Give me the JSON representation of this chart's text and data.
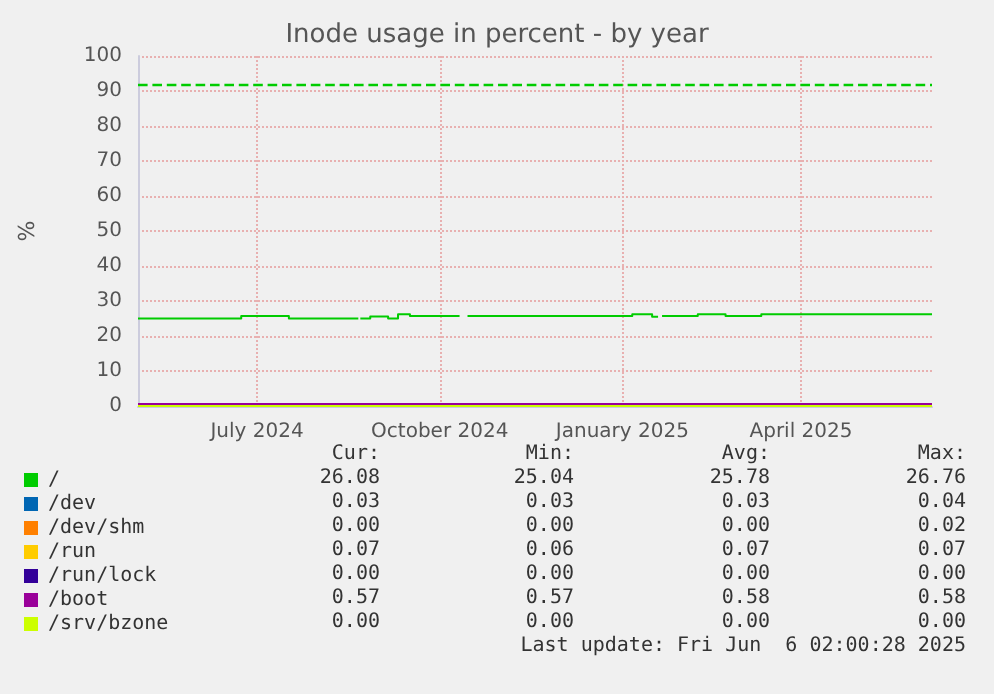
{
  "chart_data": {
    "type": "line",
    "title": "Inode usage in percent - by year",
    "ylabel": "%",
    "xlim": [
      "2024-05-02",
      "2025-06-06"
    ],
    "xticks": [
      {
        "value": "2024-07-01",
        "label": "July 2024"
      },
      {
        "value": "2024-10-01",
        "label": "October 2024"
      },
      {
        "value": "2025-01-01",
        "label": "January 2025"
      },
      {
        "value": "2025-04-01",
        "label": "April 2025"
      }
    ],
    "ylim": [
      0,
      100
    ],
    "yticks": [
      0,
      10,
      20,
      30,
      40,
      50,
      60,
      70,
      80,
      90,
      100
    ],
    "grid": true,
    "legend": "bottom left",
    "marker": "none",
    "series": [
      {
        "name": "/",
        "color": "#00cc00",
        "x": [
          "2024-05-02",
          "2024-06-23",
          "2024-06-23",
          "2024-07-17",
          "2024-07-17",
          "2024-08-21",
          null,
          "2024-08-22",
          "2024-08-27",
          "2024-08-27",
          "2024-09-05",
          "2024-09-05",
          "2024-09-10",
          "2024-09-10",
          "2024-09-16",
          "2024-09-16",
          "2024-10-11",
          null,
          "2024-10-15",
          "2025-01-06",
          "2025-01-06",
          "2025-01-16",
          "2025-01-16",
          "2025-01-19",
          null,
          "2025-01-21",
          "2025-02-08",
          "2025-02-08",
          "2025-02-22",
          "2025-02-22",
          "2025-03-12",
          "2025-03-12",
          "2025-06-06"
        ],
        "values": [
          25.0,
          25.0,
          25.7,
          25.7,
          25.0,
          25.0,
          null,
          25.0,
          25.0,
          25.6,
          25.6,
          25.0,
          25.0,
          26.2,
          26.2,
          25.7,
          25.7,
          null,
          25.7,
          25.7,
          26.2,
          26.2,
          25.5,
          25.5,
          null,
          25.7,
          25.7,
          26.2,
          26.2,
          25.7,
          25.7,
          26.2,
          26.2
        ]
      },
      {
        "name": "/dev",
        "color": "#0066b3"
      },
      {
        "name": "/dev/shm",
        "color": "#ff8000"
      },
      {
        "name": "/run",
        "color": "#ffcc00"
      },
      {
        "name": "/run/lock",
        "color": "#330099"
      },
      {
        "name": "/boot",
        "color": "#990099",
        "x": [
          "2024-05-02",
          "2025-06-06"
        ],
        "values": [
          0.6,
          0.6
        ]
      },
      {
        "name": "/srv/bzone",
        "color": "#ccff00",
        "x": [
          "2024-05-02",
          "2025-06-06"
        ],
        "values": [
          0,
          0
        ]
      }
    ],
    "ref_lines": [
      {
        "axis": "y",
        "value": 92,
        "label": null,
        "color": "#00cc00",
        "line_style": "dashed"
      }
    ],
    "annotations": [
      "Cur:",
      "Min:",
      "Avg:",
      "Max:",
      "26.08",
      "25.04",
      "25.78",
      "26.76",
      "0.03",
      "0.03",
      "0.03",
      "0.04",
      "0.00",
      "0.00",
      "0.00",
      "0.02",
      "0.07",
      "0.06",
      "0.07",
      "0.07",
      "0.00",
      "0.00",
      "0.00",
      "0.00",
      "0.57",
      "0.57",
      "0.58",
      "0.58",
      "0.00",
      "0.00",
      "0.00",
      "0.00",
      "Last update: Fri Jun  6 02:00:28 2025"
    ]
  }
}
